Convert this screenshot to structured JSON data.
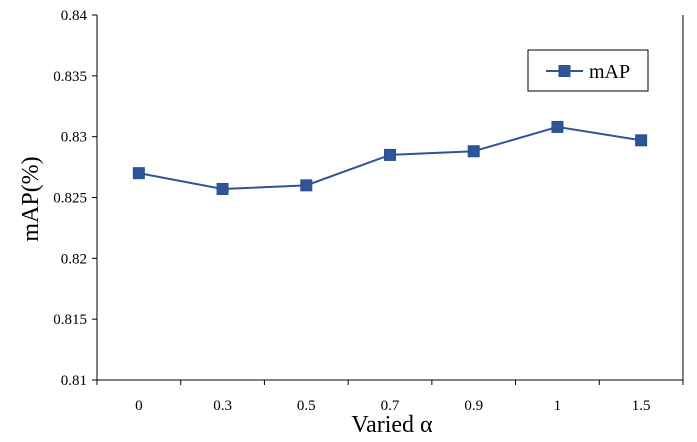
{
  "chart_data": {
    "type": "line",
    "title": "",
    "xlabel": "Varied α",
    "ylabel": "mAP(%)",
    "categories": [
      "0",
      "0.3",
      "0.5",
      "0.7",
      "0.9",
      "1",
      "1.5"
    ],
    "y_ticks": [
      "0.81",
      "0.815",
      "0.82",
      "0.825",
      "0.83",
      "0.835",
      "0.84"
    ],
    "ylim": [
      0.81,
      0.84
    ],
    "series": [
      {
        "name": "mAP",
        "values": [
          0.827,
          0.8257,
          0.826,
          0.8285,
          0.8288,
          0.8308,
          0.8297
        ],
        "color": "#2e5597",
        "marker": "square"
      }
    ],
    "grid": false,
    "legend_position": "top-right"
  }
}
